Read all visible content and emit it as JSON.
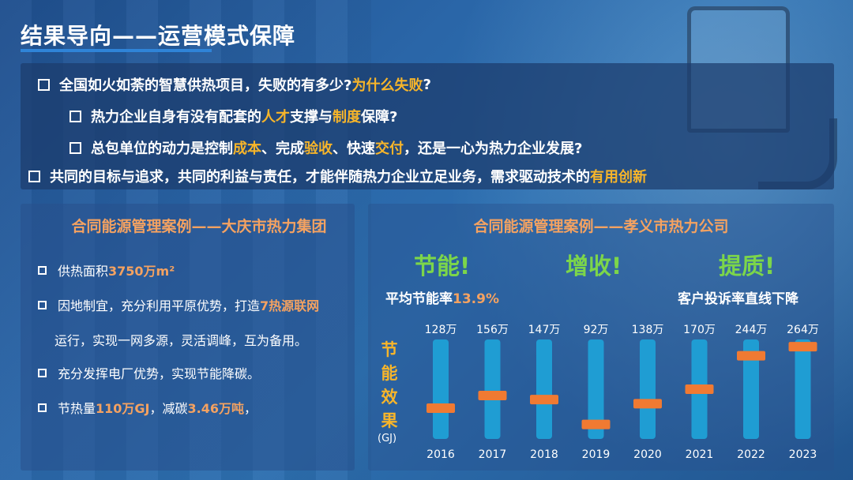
{
  "title": "结果导向——运营模式保障",
  "questions": {
    "q1": {
      "text": "全国如火如荼的智慧供热项目，失败的有多少?",
      "highlight": "为什么失败",
      "end": "?"
    },
    "q2": {
      "p1": "热力企业自身有没有配套的",
      "h1": "人才",
      "p2": "支撑与",
      "h2": "制度",
      "p3": "保障?"
    },
    "q3": {
      "p1": "总包单位的动力是控制",
      "h1": "成本",
      "p2": "、完成",
      "h2": "验收",
      "p3": "、快速",
      "h3": "交付",
      "p4": "，还是一心为热力企业发展?"
    },
    "q4": {
      "text": "共同的目标与追求，共同的利益与责任，才能伴随热力企业立足业务，需求驱动技术的",
      "highlight": "有用创新"
    }
  },
  "left_panel": {
    "title": "合同能源管理案例——大庆市热力集团",
    "item1": {
      "text": "供热面积",
      "value": "3750万m²"
    },
    "item2": {
      "text": "因地制宜，充分利用平原优势，打造",
      "value": "7热源联网",
      "cont": "运行，实现一网多源，灵活调峰，互为备用。"
    },
    "item3": {
      "text": "充分发挥电厂优势，实现节能降碳。"
    },
    "item4": {
      "t1": "节热量",
      "v1": "110万GJ",
      "t2": "，减碳",
      "v2": "3.46万吨",
      "t3": "，"
    }
  },
  "right_panel": {
    "title": "合同能源管理案例——孝义市热力公司",
    "slogans": [
      "节能!",
      "增收!",
      "提质!"
    ],
    "avg_label": "平均节能率",
    "avg_value": "13.9%",
    "complaint": "客户投诉率直线下降",
    "vertical_label": "节能效果",
    "unit": "(GJ)"
  },
  "colors": {
    "accent_orange": "#f4a261",
    "highlight_yellow": "#f7b52a",
    "slogan_green": "#7cd64a",
    "bar_track": "#1f9dd3",
    "bar_marker": "#f07a32"
  },
  "chart_data": {
    "type": "bar",
    "categories": [
      "2016",
      "2017",
      "2018",
      "2019",
      "2020",
      "2021",
      "2022",
      "2023"
    ],
    "values": [
      128,
      156,
      147,
      92,
      138,
      170,
      244,
      264
    ],
    "data_labels": [
      "128万",
      "156万",
      "147万",
      "92万",
      "138万",
      "170万",
      "244万",
      "264万"
    ],
    "ylabel": "节能效果",
    "unit": "(GJ)",
    "ylim": [
      0,
      300
    ],
    "grid": false,
    "legend": "none"
  }
}
